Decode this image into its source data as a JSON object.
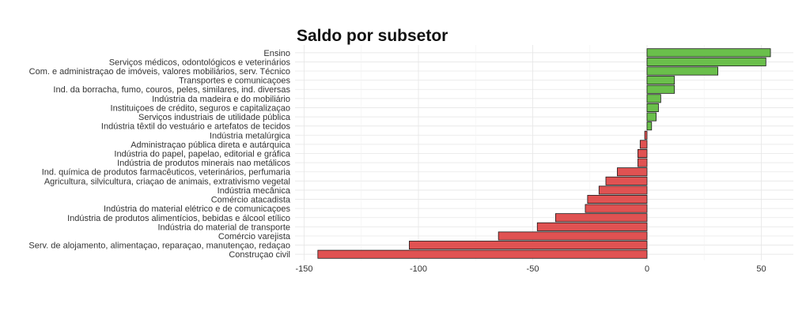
{
  "chart_data": {
    "type": "bar",
    "orientation": "horizontal",
    "title": "Saldo por subsetor",
    "xlabel": "",
    "ylabel": "",
    "xlim": [
      -150,
      60
    ],
    "x_ticks": [
      -150,
      -100,
      -50,
      0,
      50
    ],
    "x_tick_labels": [
      "-150",
      "-100",
      "-50",
      "0",
      "50"
    ],
    "grid": true,
    "legend": "none",
    "colors": {
      "positive": "#6abf4b",
      "negative": "#e05252"
    },
    "categories": [
      "Ensino",
      "Serviços médicos, odontológicos e veterinários",
      "Com. e administraçao de imóveis, valores mobiliários, serv. Técnico",
      "Transportes e comunicaçoes",
      "Ind. da borracha, fumo, couros, peles, similares, ind. diversas",
      "Indústria da madeira e do mobiliário",
      "Instituiçoes de crédito, seguros e capitalizaçao",
      "Serviços industriais de utilidade pública",
      "Indústria têxtil do vestuário e artefatos de tecidos",
      "Indústria metalúrgica",
      "Administraçao pública direta e autárquica",
      "Indústria do papel, papelao, editorial e gráfica",
      "Indústria de produtos minerais nao metálicos",
      "Ind. química de produtos farmacêuticos, veterinários, perfumaria",
      "Agricultura, silvicultura, criaçao de animais, extrativismo vegetal",
      "Indústria mecânica",
      "Comércio atacadista",
      "Indústria do material elétrico e de comunicaçoes",
      "Indústria de produtos alimentícios, bebidas e álcool etílico",
      "Indústria do material de transporte",
      "Comércio varejista",
      "Serv. de alojamento, alimentaçao, reparaçao, manutençao, redaçao",
      "Construçao civil"
    ],
    "values": [
      54,
      52,
      31,
      12,
      12,
      6,
      5,
      4,
      2,
      -1,
      -3,
      -4,
      -4,
      -13,
      -18,
      -21,
      -26,
      -27,
      -40,
      -48,
      -65,
      -104,
      -144
    ]
  }
}
